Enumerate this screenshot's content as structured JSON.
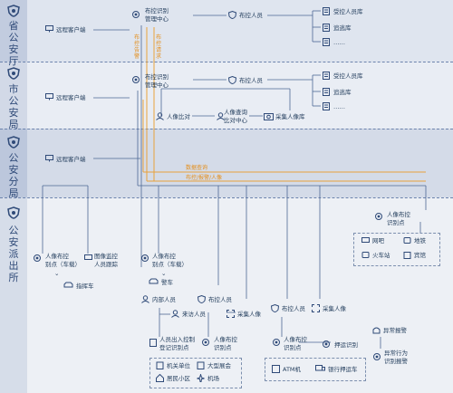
{
  "tiers": {
    "province": "省公安厅",
    "city": "市公安局",
    "branch": "公安分局",
    "station": "公安派出所"
  },
  "province": {
    "remote_client": "远程客户端",
    "control_center": [
      "布控识别",
      "管理中心"
    ],
    "control_person": "布控人员",
    "library_items": [
      "受控人员库",
      "追逃库",
      "……"
    ]
  },
  "city": {
    "remote_client": "远程客户端",
    "control_center": [
      "布控识别",
      "管理中心"
    ],
    "control_person": "布控人员",
    "library_items": [
      "受控人员库",
      "追逃库",
      "……"
    ],
    "face_compare": "人像比对",
    "face_query": [
      "人像查询",
      "比对中心"
    ],
    "collect_db": "采集人像库"
  },
  "vertical_labels": [
    "布控告警",
    "布控请求"
  ],
  "branch": {
    "remote_client": "远程客户端",
    "orange_labels": [
      "数据查询",
      "布控/报警/人像"
    ]
  },
  "station": {
    "control_point_right": [
      "人像布控",
      "识别点"
    ],
    "venues": [
      "网吧",
      "地铁",
      "火车站",
      "宾馆"
    ],
    "mobile_point": [
      "人像布控",
      "别点（车载）"
    ],
    "image_monitor": [
      "图像监控",
      "人员跟踪"
    ],
    "patrol_car": "指挥车",
    "mobile_point_2": [
      "人像布控",
      "别点（车载）"
    ],
    "police_car": "警车",
    "internal_staff": "内部人员",
    "visitor": "来访人员",
    "entry_control": [
      "人员出入控制",
      "登记识别点"
    ],
    "control_person_a": "布控人员",
    "collect_face_a": "采集人像",
    "control_point_a": [
      "人像布控",
      "识别点"
    ],
    "sites_a": [
      "机关单位",
      "大型展会",
      "居民小区",
      "机场"
    ],
    "control_person_b": "布控人员",
    "collect_face_b": "采集人像",
    "control_point_b": [
      "人像布控",
      "识别点"
    ],
    "escort": "押运识别",
    "sites_b": [
      "ATM机",
      "银行押运车"
    ],
    "abnormal_alarm": "异常报警",
    "abnormal_behavior": [
      "异常行为",
      "识别报警"
    ]
  },
  "colors": {
    "navy": "#2f4a78",
    "line": "#4d6795",
    "orange": "#e9a23b",
    "band_province": "#c5cfe1",
    "band_city": "#dde3ed",
    "band_branch": "#c8d1e3",
    "band_station": "#e4e9f1"
  }
}
